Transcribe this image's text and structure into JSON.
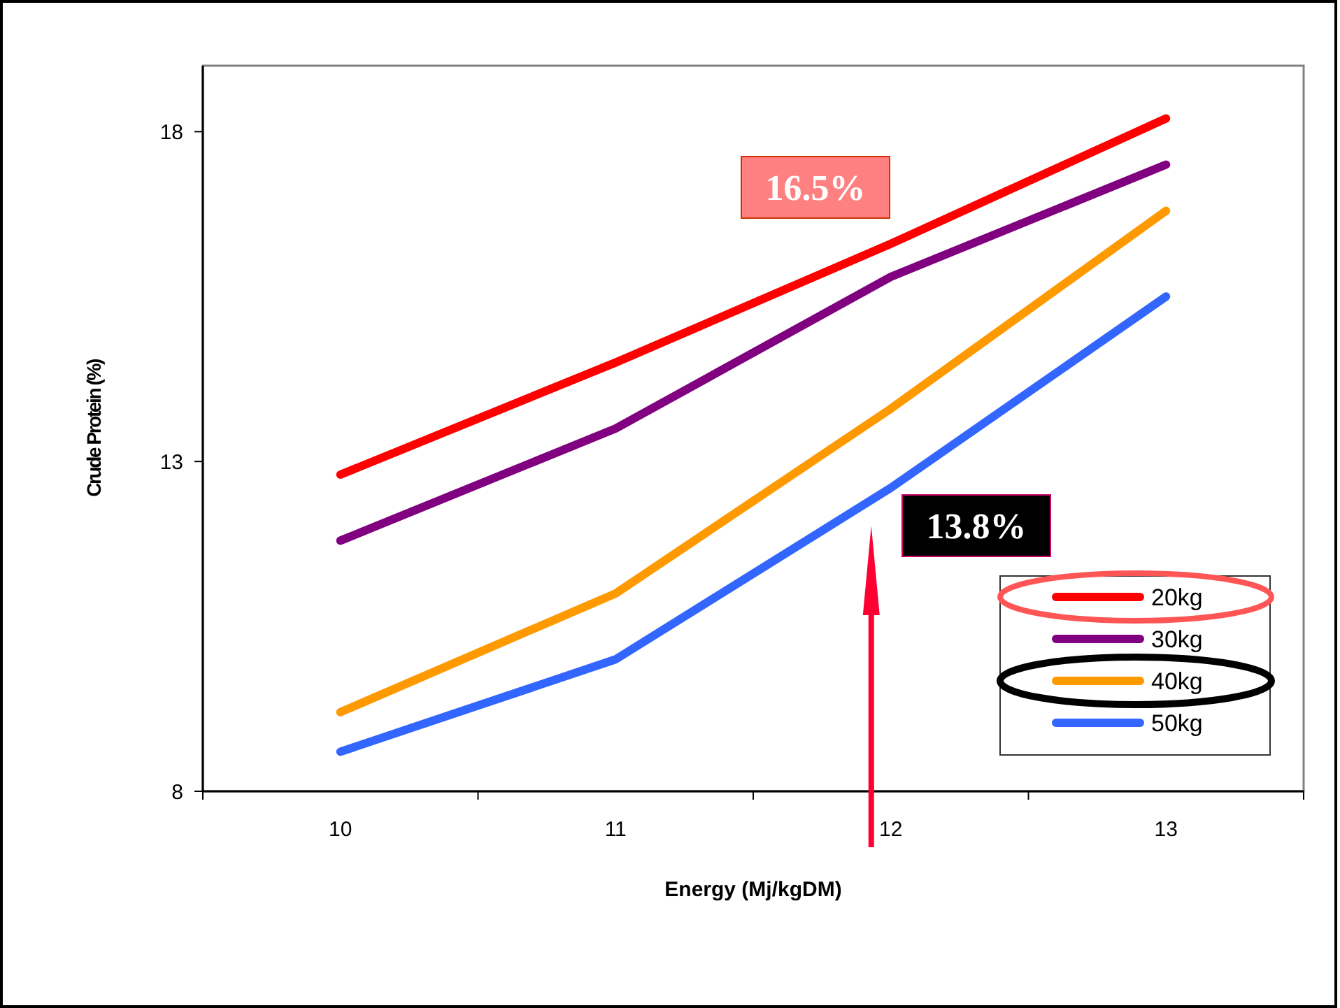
{
  "chart_data": {
    "type": "line",
    "xlabel": "Energy (Mj/kgDM)",
    "ylabel": "Crude Protein (%)",
    "categories": [
      "10",
      "11",
      "12",
      "13"
    ],
    "series": [
      {
        "name": "20kg",
        "color": "#ff0000",
        "values": [
          12.8,
          14.5,
          16.3,
          18.2
        ]
      },
      {
        "name": "30kg",
        "color": "#800080",
        "values": [
          11.8,
          13.5,
          15.8,
          17.5
        ]
      },
      {
        "name": "40kg",
        "color": "#ff9900",
        "values": [
          9.2,
          11.0,
          13.8,
          16.8
        ]
      },
      {
        "name": "50kg",
        "color": "#3366ff",
        "values": [
          8.6,
          10.0,
          12.6,
          15.5
        ]
      }
    ],
    "ylim": [
      8,
      19
    ],
    "yticks": [
      8,
      13,
      18
    ],
    "grid": false,
    "legend": "bottom right",
    "marker": "none",
    "line_style": "solid",
    "annotations": [
      "16.5%",
      "13.8%"
    ]
  }
}
